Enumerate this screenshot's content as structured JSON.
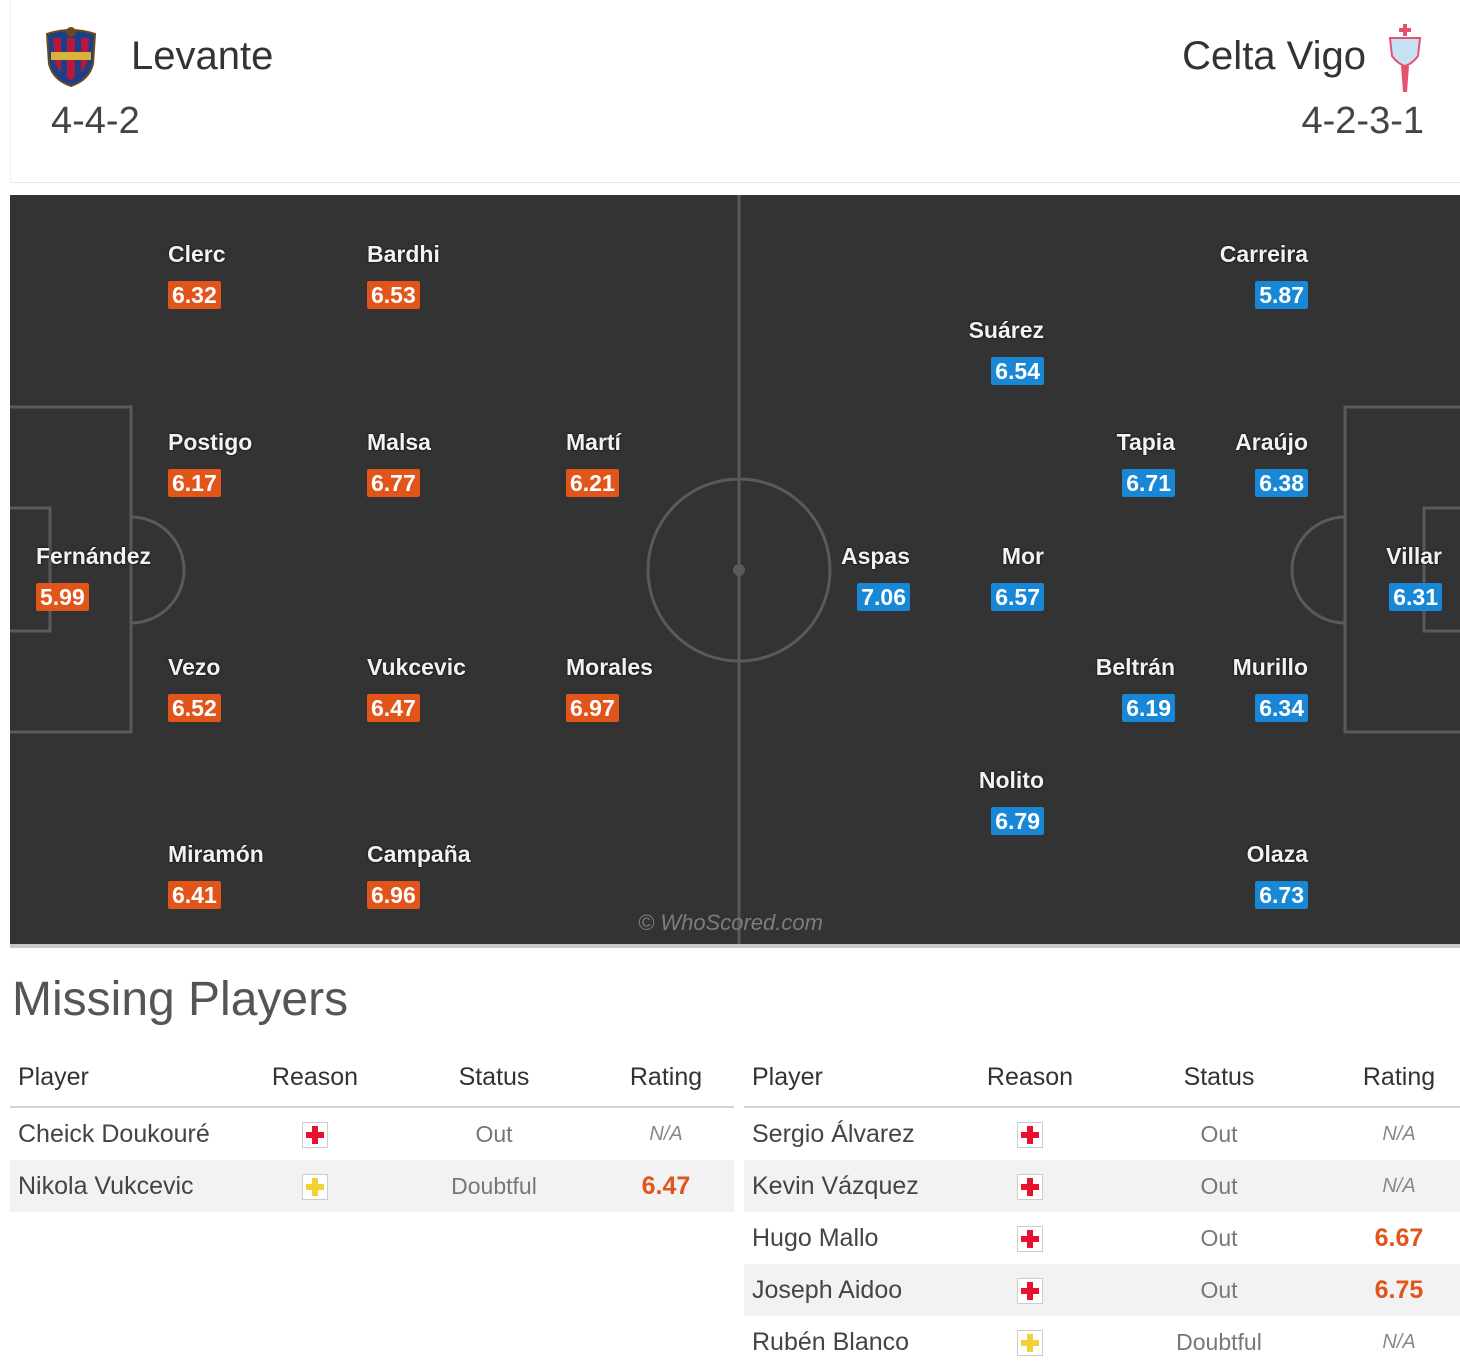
{
  "home": {
    "name": "Levante",
    "formation": "4-4-2",
    "crest": "levante-crest"
  },
  "away": {
    "name": "Celta Vigo",
    "formation": "4-2-3-1",
    "crest": "celta-vigo-crest"
  },
  "colors": {
    "home_rating": "#e2551a",
    "away_rating": "#1787d6",
    "pitch": "#333333",
    "injury": "#e8112d",
    "doubtful": "#f5d033"
  },
  "home_players": [
    {
      "name": "Clerc",
      "rating": "6.32"
    },
    {
      "name": "Bardhi",
      "rating": "6.53"
    },
    {
      "name": "Postigo",
      "rating": "6.17"
    },
    {
      "name": "Malsa",
      "rating": "6.77"
    },
    {
      "name": "Martí",
      "rating": "6.21"
    },
    {
      "name": "Fernández",
      "rating": "5.99"
    },
    {
      "name": "Vezo",
      "rating": "6.52"
    },
    {
      "name": "Vukcevic",
      "rating": "6.47"
    },
    {
      "name": "Morales",
      "rating": "6.97"
    },
    {
      "name": "Miramón",
      "rating": "6.41"
    },
    {
      "name": "Campaña",
      "rating": "6.96"
    }
  ],
  "away_players": [
    {
      "name": "Carreira",
      "rating": "5.87"
    },
    {
      "name": "Suárez",
      "rating": "6.54"
    },
    {
      "name": "Tapia",
      "rating": "6.71"
    },
    {
      "name": "Araújo",
      "rating": "6.38"
    },
    {
      "name": "Aspas",
      "rating": "7.06"
    },
    {
      "name": "Mor",
      "rating": "6.57"
    },
    {
      "name": "Villar",
      "rating": "6.31"
    },
    {
      "name": "Beltrán",
      "rating": "6.19"
    },
    {
      "name": "Murillo",
      "rating": "6.34"
    },
    {
      "name": "Nolito",
      "rating": "6.79"
    },
    {
      "name": "Olaza",
      "rating": "6.73"
    }
  ],
  "watermark": "© WhoScored.com",
  "missing": {
    "title": "Missing Players",
    "headers": {
      "player": "Player",
      "reason": "Reason",
      "status": "Status",
      "rating": "Rating"
    },
    "home": [
      {
        "player": "Cheick Doukouré",
        "reason": "injury",
        "status": "Out",
        "rating": "N/A"
      },
      {
        "player": "Nikola Vukcevic",
        "reason": "doubtful",
        "status": "Doubtful",
        "rating": "6.47"
      }
    ],
    "away": [
      {
        "player": "Sergio Álvarez",
        "reason": "injury",
        "status": "Out",
        "rating": "N/A"
      },
      {
        "player": "Kevin Vázquez",
        "reason": "injury",
        "status": "Out",
        "rating": "N/A"
      },
      {
        "player": "Hugo Mallo",
        "reason": "injury",
        "status": "Out",
        "rating": "6.67"
      },
      {
        "player": "Joseph Aidoo",
        "reason": "injury",
        "status": "Out",
        "rating": "6.75"
      },
      {
        "player": "Rubén Blanco",
        "reason": "doubtful",
        "status": "Doubtful",
        "rating": "N/A"
      }
    ]
  }
}
